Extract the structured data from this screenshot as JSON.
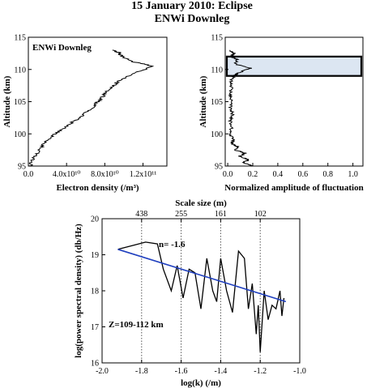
{
  "header": {
    "title": "15 January 2010: Eclipse",
    "subtitle": "ENWi Downleg"
  },
  "chart_data": [
    {
      "type": "line",
      "legend_text": "ENWi Downleg",
      "legend_color": "#1f1fbf",
      "xlabel": "Electron density (/m³)",
      "ylabel": "Altitude (km)",
      "xlim": [
        0,
        145000000000.0
      ],
      "ylim": [
        95,
        115
      ],
      "xticks": [
        0,
        40000000000.0,
        80000000000.0,
        120000000000.0
      ],
      "xtick_labels": [
        "0.0",
        "4.0x10¹⁰",
        "8.0x10¹⁰",
        "1.2x10¹¹"
      ],
      "yticks": [
        95,
        100,
        105,
        110,
        115
      ],
      "ytick_labels": [
        "95",
        "100",
        "105",
        "110",
        "115"
      ],
      "profile": [
        [
          2000000000.0,
          95
        ],
        [
          4000000000.0,
          96
        ],
        [
          9000000000.0,
          97
        ],
        [
          14000000000.0,
          98
        ],
        [
          20000000000.0,
          99
        ],
        [
          28000000000.0,
          100
        ],
        [
          38000000000.0,
          101
        ],
        [
          48000000000.0,
          102
        ],
        [
          58000000000.0,
          103
        ],
        [
          66000000000.0,
          104
        ],
        [
          73000000000.0,
          105
        ],
        [
          79000000000.0,
          106
        ],
        [
          85000000000.0,
          107
        ],
        [
          93000000000.0,
          108
        ],
        [
          104000000000.0,
          109
        ],
        [
          130000000000.0,
          110.5
        ],
        [
          110000000000.0,
          111.2
        ],
        [
          98000000000.0,
          112
        ],
        [
          95000000000.0,
          112.6
        ],
        [
          88000000000.0,
          113
        ]
      ]
    },
    {
      "type": "line",
      "xlabel": "Normalized amplitude of fluctuation",
      "ylabel": "Altitude (km)",
      "xlim": [
        -0.02,
        1.08
      ],
      "ylim": [
        95,
        115
      ],
      "xticks": [
        0.0,
        0.2,
        0.4,
        0.6,
        0.8,
        1.0
      ],
      "xtick_labels": [
        "0.0",
        "0.2",
        "0.4",
        "0.6",
        "0.8",
        "1.0"
      ],
      "yticks": [
        95,
        100,
        105,
        110,
        115
      ],
      "ytick_labels": [
        "95",
        "100",
        "105",
        "110",
        "115"
      ],
      "highlight_band": {
        "ymin": 109,
        "ymax": 112
      },
      "band_color": "#dce6f2",
      "profile": [
        [
          0.2,
          95
        ],
        [
          0.12,
          95.5
        ],
        [
          0.17,
          96
        ],
        [
          0.09,
          96.5
        ],
        [
          0.14,
          97
        ],
        [
          0.06,
          97.5
        ],
        [
          0.08,
          98
        ],
        [
          0.03,
          98.5
        ],
        [
          0.05,
          99
        ],
        [
          0.02,
          100
        ],
        [
          0.03,
          101
        ],
        [
          0.02,
          102
        ],
        [
          0.04,
          103
        ],
        [
          0.02,
          104
        ],
        [
          0.03,
          105
        ],
        [
          0.02,
          106
        ],
        [
          0.03,
          107
        ],
        [
          0.02,
          108
        ],
        [
          0.05,
          109
        ],
        [
          0.09,
          109.5
        ],
        [
          0.18,
          110.2
        ],
        [
          0.06,
          110.8
        ],
        [
          0.08,
          111.5
        ],
        [
          0.03,
          112
        ],
        [
          0.05,
          112.5
        ],
        [
          0.02,
          113
        ]
      ]
    },
    {
      "type": "line",
      "xlabel": "log(k) (/m)",
      "ylabel": "log(power spectral density) (db/Hz)",
      "top_axis_label": "Scale size (m)",
      "xlim": [
        -2.0,
        -1.0
      ],
      "ylim": [
        16,
        20
      ],
      "xticks": [
        -2.0,
        -1.8,
        -1.6,
        -1.4,
        -1.2,
        -1.0
      ],
      "xtick_labels": [
        "-2.0",
        "-1.8",
        "-1.6",
        "-1.4",
        "-1.2",
        "-1.0"
      ],
      "yticks": [
        16,
        17,
        18,
        19,
        20
      ],
      "ytick_labels": [
        "16",
        "17",
        "18",
        "19",
        "20"
      ],
      "top_ticks": [
        -1.8,
        -1.6,
        -1.4,
        -1.2
      ],
      "top_tick_labels": [
        "438",
        "255",
        "161",
        "102"
      ],
      "annotations": {
        "slope": "n= -1.6",
        "range": "Z=109-112 km"
      },
      "fit_color": "#1f3fbf",
      "series": [
        {
          "x": [
            -1.92,
            -1.85,
            -1.78,
            -1.72,
            -1.69,
            -1.65,
            -1.62,
            -1.59,
            -1.56,
            -1.53,
            -1.5,
            -1.47,
            -1.44,
            -1.42,
            -1.4,
            -1.37,
            -1.34,
            -1.31,
            -1.28,
            -1.26,
            -1.24,
            -1.22,
            -1.21,
            -1.2,
            -1.18,
            -1.16,
            -1.14,
            -1.12,
            -1.1,
            -1.09,
            -1.08
          ],
          "y": [
            19.15,
            19.25,
            19.35,
            19.3,
            18.6,
            18.0,
            18.7,
            17.8,
            18.6,
            18.5,
            17.5,
            18.9,
            18.0,
            17.7,
            18.9,
            18.0,
            17.4,
            19.1,
            18.9,
            17.5,
            18.2,
            16.8,
            17.6,
            16.3,
            18.0,
            17.2,
            17.6,
            17.5,
            18.0,
            17.3,
            17.8
          ]
        },
        {
          "x": [
            -1.92,
            -1.07
          ],
          "y": [
            19.15,
            17.7
          ]
        }
      ]
    }
  ]
}
